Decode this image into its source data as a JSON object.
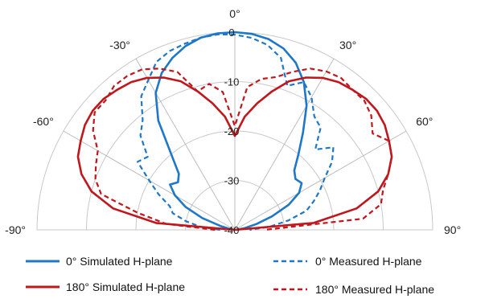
{
  "chart_data": {
    "type": "line",
    "polar": true,
    "angle_range": [
      -90,
      90
    ],
    "angle_ticks": [
      -90,
      -60,
      -30,
      0,
      30,
      60,
      90
    ],
    "angle_tick_labels": [
      "-90°",
      "-60°",
      "-30°",
      "0°",
      "30°",
      "60°",
      "90°"
    ],
    "radial_range": [
      -40,
      0
    ],
    "radial_ticks": [
      0,
      -10,
      -20,
      -30,
      -40
    ],
    "radial_tick_labels": [
      "0",
      "-10",
      "-20",
      "-30",
      "-40"
    ],
    "grid": true,
    "legend_position": "bottom",
    "series": [
      {
        "name": "0° Simulated H-plane",
        "color": "#1f77c8",
        "dash": "solid",
        "points": [
          [
            -90,
            -40
          ],
          [
            -85,
            -40
          ],
          [
            -80,
            -39
          ],
          [
            -75,
            -37
          ],
          [
            -70,
            -33
          ],
          [
            -65,
            -29
          ],
          [
            -60,
            -26
          ],
          [
            -55,
            -24
          ],
          [
            -50,
            -25
          ],
          [
            -45,
            -24
          ],
          [
            -40,
            -20
          ],
          [
            -35,
            -13
          ],
          [
            -30,
            -8
          ],
          [
            -25,
            -5
          ],
          [
            -20,
            -3
          ],
          [
            -15,
            -1.5
          ],
          [
            -10,
            -0.5
          ],
          [
            -5,
            -0.1
          ],
          [
            0,
            0
          ],
          [
            5,
            -0.2
          ],
          [
            10,
            -0.8
          ],
          [
            15,
            -2
          ],
          [
            20,
            -4
          ],
          [
            25,
            -7
          ],
          [
            30,
            -11
          ],
          [
            35,
            -16
          ],
          [
            40,
            -20
          ],
          [
            45,
            -23
          ],
          [
            50,
            -24
          ],
          [
            55,
            -23.5
          ],
          [
            60,
            -25
          ],
          [
            65,
            -28
          ],
          [
            70,
            -32
          ],
          [
            75,
            -35.5
          ],
          [
            80,
            -38
          ],
          [
            85,
            -39.5
          ],
          [
            90,
            -40
          ]
        ]
      },
      {
        "name": "0° Measured H-plane",
        "color": "#1f77c8",
        "dash": "dashed",
        "points": [
          [
            -90,
            -37
          ],
          [
            -85,
            -33
          ],
          [
            -80,
            -30
          ],
          [
            -75,
            -27
          ],
          [
            -70,
            -26
          ],
          [
            -65,
            -23
          ],
          [
            -60,
            -20
          ],
          [
            -55,
            -16
          ],
          [
            -50,
            -17
          ],
          [
            -45,
            -13
          ],
          [
            -40,
            -11
          ],
          [
            -35,
            -7
          ],
          [
            -30,
            -5
          ],
          [
            -25,
            -2.5
          ],
          [
            -20,
            -1.5
          ],
          [
            -15,
            -1
          ],
          [
            -10,
            -0.5
          ],
          [
            -5,
            -0.3
          ],
          [
            0,
            -0.5
          ],
          [
            5,
            -1
          ],
          [
            10,
            -2
          ],
          [
            15,
            -4
          ],
          [
            20,
            -9
          ],
          [
            25,
            -7
          ],
          [
            30,
            -9
          ],
          [
            35,
            -12
          ],
          [
            40,
            -13
          ],
          [
            45,
            -17
          ],
          [
            50,
            -14
          ],
          [
            55,
            -16
          ],
          [
            60,
            -19
          ],
          [
            65,
            -21
          ],
          [
            70,
            -23
          ],
          [
            75,
            -25
          ],
          [
            80,
            -29
          ],
          [
            85,
            -33
          ],
          [
            90,
            -37
          ]
        ]
      },
      {
        "name": "180° Simulated H-plane",
        "color": "#c0171c",
        "dash": "solid",
        "points": [
          [
            -90,
            -40
          ],
          [
            -85,
            -24
          ],
          [
            -80,
            -15
          ],
          [
            -75,
            -10
          ],
          [
            -70,
            -7
          ],
          [
            -65,
            -5
          ],
          [
            -60,
            -4
          ],
          [
            -55,
            -3
          ],
          [
            -50,
            -2.5
          ],
          [
            -45,
            -2.5
          ],
          [
            -40,
            -3
          ],
          [
            -35,
            -3.5
          ],
          [
            -30,
            -4.5
          ],
          [
            -25,
            -6
          ],
          [
            -20,
            -8
          ],
          [
            -15,
            -11
          ],
          [
            -10,
            -14
          ],
          [
            -5,
            -17
          ],
          [
            0,
            -21
          ],
          [
            5,
            -17
          ],
          [
            10,
            -14
          ],
          [
            15,
            -11
          ],
          [
            20,
            -8
          ],
          [
            25,
            -6
          ],
          [
            30,
            -4.5
          ],
          [
            35,
            -3.5
          ],
          [
            40,
            -3
          ],
          [
            45,
            -2.5
          ],
          [
            50,
            -2.5
          ],
          [
            55,
            -3
          ],
          [
            60,
            -4
          ],
          [
            65,
            -5
          ],
          [
            70,
            -7
          ],
          [
            75,
            -10
          ],
          [
            80,
            -15
          ],
          [
            85,
            -24
          ],
          [
            90,
            -40
          ]
        ]
      },
      {
        "name": "180° Measured H-plane",
        "color": "#c0171c",
        "dash": "dashed",
        "points": [
          [
            -90,
            -36
          ],
          [
            -85,
            -26
          ],
          [
            -80,
            -20
          ],
          [
            -75,
            -12
          ],
          [
            -70,
            -10
          ],
          [
            -65,
            -9
          ],
          [
            -60,
            -8
          ],
          [
            -55,
            -5
          ],
          [
            -50,
            -3
          ],
          [
            -45,
            -3
          ],
          [
            -40,
            -2
          ],
          [
            -35,
            -2
          ],
          [
            -30,
            -2.5
          ],
          [
            -25,
            -4
          ],
          [
            -20,
            -6
          ],
          [
            -15,
            -11
          ],
          [
            -10,
            -10
          ],
          [
            -5,
            -12
          ],
          [
            0,
            -19
          ],
          [
            5,
            -11
          ],
          [
            10,
            -9
          ],
          [
            15,
            -8
          ],
          [
            20,
            -6
          ],
          [
            25,
            -4
          ],
          [
            30,
            -3
          ],
          [
            35,
            -2.5
          ],
          [
            40,
            -3
          ],
          [
            45,
            -3
          ],
          [
            50,
            -4
          ],
          [
            55,
            -6
          ],
          [
            60,
            -4
          ],
          [
            65,
            -5
          ],
          [
            70,
            -7
          ],
          [
            75,
            -9
          ],
          [
            80,
            -10
          ],
          [
            85,
            -14
          ],
          [
            90,
            -34
          ]
        ]
      }
    ]
  }
}
